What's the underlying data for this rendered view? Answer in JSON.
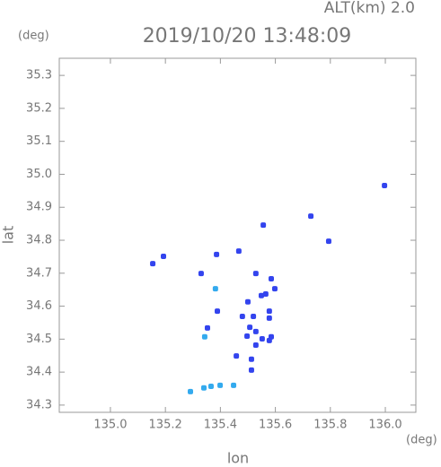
{
  "chart_data": {
    "type": "scatter",
    "title": "2019/10/20 13:48:09",
    "subtitle": "ALT(km) 2.0",
    "y_unit": "(deg)",
    "x_unit": "(deg)",
    "x_label": "lon",
    "y_label": "lat",
    "xlim": [
      134.814,
      136.111
    ],
    "ylim": [
      34.278,
      35.352
    ],
    "xticks": [
      {
        "value": 135.0,
        "label": "135.0"
      },
      135.2,
      135.4,
      135.6,
      135.8,
      {
        "value": 136.0,
        "label": "136.0"
      }
    ],
    "yticks": [
      34.3,
      34.4,
      34.5,
      34.6,
      34.7,
      34.8,
      34.9,
      {
        "value": 35.0,
        "label": "35.0"
      },
      35.1,
      35.2,
      35.3
    ],
    "series": [
      {
        "color": "#3344ee",
        "x": [
          135.729,
          135.794,
          135.997,
          135.556,
          135.193,
          135.154,
          135.386,
          135.467,
          135.33,
          135.389,
          135.458,
          135.513,
          135.52,
          135.497,
          135.48,
          135.5,
          135.549,
          135.565,
          135.585,
          135.598,
          135.529,
          135.529,
          135.507,
          135.552,
          135.578,
          135.578,
          135.585,
          135.578,
          135.529,
          135.513,
          135.353
        ],
        "y": [
          34.873,
          34.797,
          34.966,
          34.846,
          34.751,
          34.729,
          34.757,
          34.767,
          34.699,
          34.585,
          34.449,
          34.439,
          34.569,
          34.509,
          34.569,
          34.613,
          34.632,
          34.637,
          34.683,
          34.653,
          34.699,
          34.523,
          34.536,
          34.501,
          34.496,
          34.564,
          34.507,
          34.585,
          34.482,
          34.406,
          34.534
        ]
      },
      {
        "color": "#33aaee",
        "x": [
          135.291,
          135.34,
          135.366,
          135.399,
          135.448,
          135.382,
          135.343
        ],
        "y": [
          34.341,
          34.352,
          34.357,
          34.36,
          34.36,
          34.653,
          34.507
        ]
      }
    ]
  }
}
